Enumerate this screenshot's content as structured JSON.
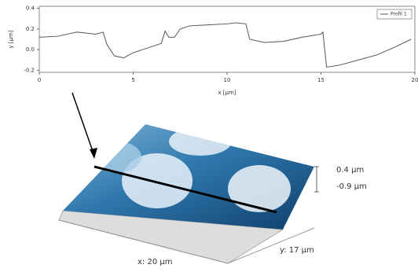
{
  "chart_data": {
    "type": "line",
    "xlabel": "x [µm]",
    "ylabel": "y [µm]",
    "x": [
      0,
      1,
      2,
      3,
      3.4,
      3.6,
      4,
      4.5,
      5,
      6,
      6.5,
      6.7,
      6.9,
      7.2,
      7.5,
      8,
      9,
      10,
      10.5,
      11,
      11.2,
      12,
      13,
      14,
      15,
      15.1,
      15.3,
      16,
      17,
      18,
      19,
      19.8
    ],
    "series": [
      {
        "name": "Profil 1",
        "color": "#555555",
        "values": [
          0.12,
          0.13,
          0.17,
          0.15,
          0.17,
          0.05,
          -0.06,
          -0.08,
          -0.03,
          0.03,
          0.06,
          0.18,
          0.12,
          0.12,
          0.2,
          0.23,
          0.24,
          0.25,
          0.26,
          0.25,
          0.1,
          0.07,
          0.08,
          0.12,
          0.15,
          0.17,
          -0.17,
          -0.15,
          -0.1,
          -0.05,
          0.03,
          0.1
        ]
      }
    ],
    "xlim": [
      0,
      20
    ],
    "xticks": [
      0,
      5,
      10,
      15,
      20
    ],
    "ylim": [
      -0.22,
      0.42
    ],
    "yticks": [
      0.4,
      0.2,
      {
        "value": 0,
        "label": "0.0"
      },
      -0.2
    ],
    "legend": "top-right"
  },
  "surface": {
    "z_max": "0.4 µm",
    "z_min": "-0.9 µm",
    "y_size": "y: 17 µm",
    "x_size": "x: 20 µm"
  }
}
